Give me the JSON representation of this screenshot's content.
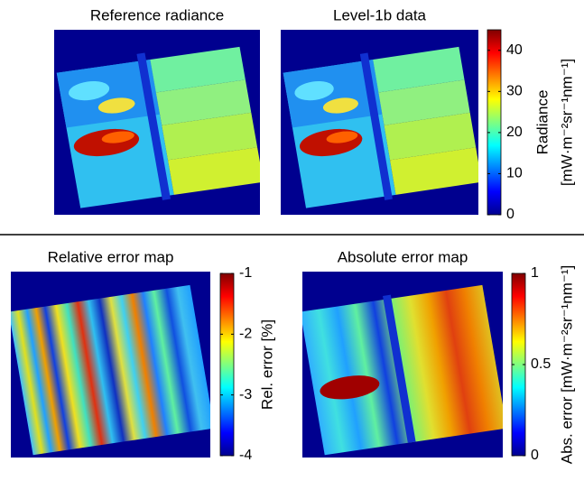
{
  "panels": [
    {
      "title": "Reference radiance"
    },
    {
      "title": "Level-1b data"
    },
    {
      "title": "Relative error map"
    },
    {
      "title": "Absolute error map"
    }
  ],
  "colorbars": [
    {
      "label": "Radiance",
      "unit": "[mW·m⁻²sr⁻¹nm⁻¹]",
      "lim": [
        0,
        45
      ],
      "ticks": [
        0,
        10,
        20,
        30,
        40
      ]
    },
    {
      "label": "Rel. error [%]",
      "lim": [
        -4,
        -1
      ],
      "ticks": [
        -4,
        -3,
        -2,
        -1
      ]
    },
    {
      "label": "Abs. error [mW·m⁻²sr⁻¹nm⁻¹]",
      "lim": [
        0,
        1
      ],
      "ticks": [
        0,
        0.5,
        1
      ]
    }
  ]
}
